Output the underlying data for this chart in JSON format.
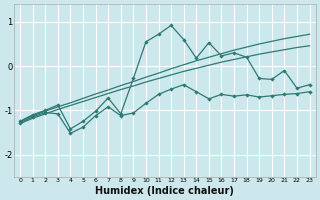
{
  "xlabel": "Humidex (Indice chaleur)",
  "bg_color": "#cce8ec",
  "grid_color": "#ffffff",
  "line_color": "#2d7a72",
  "ylim": [
    -2.5,
    1.4
  ],
  "xlim": [
    -0.5,
    23.5
  ],
  "yticks": [
    -2,
    -1,
    0,
    1
  ],
  "xticks": [
    0,
    1,
    2,
    3,
    4,
    5,
    6,
    7,
    8,
    9,
    10,
    11,
    12,
    13,
    14,
    15,
    16,
    17,
    18,
    19,
    20,
    21,
    22,
    23
  ],
  "x": [
    0,
    1,
    2,
    3,
    4,
    5,
    6,
    7,
    8,
    9,
    10,
    11,
    12,
    13,
    14,
    15,
    16,
    17,
    18,
    19,
    20,
    21,
    22,
    23
  ],
  "y_jagged_upper": [
    -1.25,
    -1.1,
    -1.0,
    -0.88,
    -1.42,
    -1.25,
    -1.02,
    -0.72,
    -1.08,
    -0.28,
    0.55,
    0.72,
    0.92,
    0.6,
    0.18,
    0.53,
    0.23,
    0.3,
    0.2,
    -0.28,
    -0.3,
    -0.1,
    -0.5,
    -0.42
  ],
  "y_smooth_upper": [
    -1.25,
    -1.12,
    -1.02,
    -0.92,
    -0.83,
    -0.73,
    -0.63,
    -0.54,
    -0.44,
    -0.35,
    -0.25,
    -0.16,
    -0.06,
    0.03,
    0.12,
    0.2,
    0.28,
    0.36,
    0.43,
    0.5,
    0.56,
    0.62,
    0.67,
    0.72
  ],
  "y_smooth_lower": [
    -1.3,
    -1.18,
    -1.08,
    -0.98,
    -0.89,
    -0.8,
    -0.71,
    -0.62,
    -0.53,
    -0.45,
    -0.36,
    -0.28,
    -0.2,
    -0.12,
    -0.05,
    0.02,
    0.09,
    0.15,
    0.21,
    0.27,
    0.32,
    0.37,
    0.42,
    0.46
  ],
  "y_jagged_lower": [
    -1.28,
    -1.15,
    -1.05,
    -1.08,
    -1.52,
    -1.38,
    -1.12,
    -0.92,
    -1.12,
    -1.06,
    -0.84,
    -0.64,
    -0.52,
    -0.42,
    -0.58,
    -0.74,
    -0.64,
    -0.68,
    -0.65,
    -0.7,
    -0.67,
    -0.64,
    -0.62,
    -0.58
  ]
}
